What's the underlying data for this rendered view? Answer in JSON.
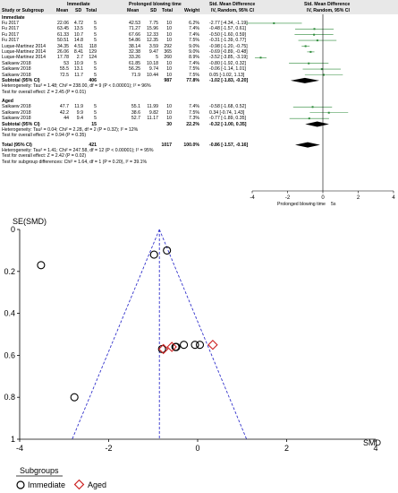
{
  "forest": {
    "headers": {
      "study": "Study or Subgroup",
      "group1": "Immediate",
      "group2": "Prolonged blowing time",
      "mean1": "Mean",
      "sd1": "SD",
      "total1": "Total",
      "mean2": "Mean",
      "sd2": "SD",
      "total2": "Total",
      "weight": "Weight",
      "smd_title": "Std. Mean Difference",
      "smd_sub": "IV, Random, 95% CI",
      "plot_title": "Std. Mean Difference",
      "plot_sub": "IV, Random, 95% CI"
    },
    "groups": [
      {
        "name": "Immediate",
        "rows": [
          {
            "study": "Fu 2017",
            "m1": "22.06",
            "s1": "4.72",
            "n1": "5",
            "m2": "42.53",
            "s2": "7.75",
            "n2": "10",
            "w": "6.2%",
            "ci": "-2.77 [-4.34, -1.19]",
            "est": -2.77,
            "lo": -4.34,
            "hi": -1.19
          },
          {
            "study": "Fu 2017",
            "m1": "63.45",
            "s1": "13.5",
            "n1": "5",
            "m2": "71.27",
            "s2": "15.96",
            "n2": "10",
            "w": "7.4%",
            "ci": "-0.48 [-1.57, 0.61]",
            "est": -0.48,
            "lo": -1.57,
            "hi": 0.61
          },
          {
            "study": "Fu 2017",
            "m1": "61.33",
            "s1": "10.7",
            "n1": "5",
            "m2": "67.66",
            "s2": "12.33",
            "n2": "10",
            "w": "7.4%",
            "ci": "-0.50 [-1.60, 0.59]",
            "est": -0.5,
            "lo": -1.6,
            "hi": 0.59
          },
          {
            "study": "Fu 2017",
            "m1": "50.51",
            "s1": "14.8",
            "n1": "5",
            "m2": "54.86",
            "s2": "12.35",
            "n2": "10",
            "w": "7.5%",
            "ci": "-0.31 [-1.39, 0.77]",
            "est": -0.31,
            "lo": -1.39,
            "hi": 0.77
          },
          {
            "study": "Luque-Martinez 2014",
            "m1": "34.35",
            "s1": "4.51",
            "n1": "118",
            "m2": "38.14",
            "s2": "3.59",
            "n2": "292",
            "w": "9.0%",
            "ci": "-0.98 [-1.20, -0.75]",
            "est": -0.98,
            "lo": -1.2,
            "hi": -0.75
          },
          {
            "study": "Luque-Martinez 2014",
            "m1": "26.06",
            "s1": "8.41",
            "n1": "129",
            "m2": "32.38",
            "s2": "9.47",
            "n2": "365",
            "w": "9.0%",
            "ci": "-0.69 [-0.89, -0.48]",
            "est": -0.69,
            "lo": -0.89,
            "hi": -0.48
          },
          {
            "study": "Luque-Martinez 2014",
            "m1": "17.78",
            "s1": "2.7",
            "n1": "124",
            "m2": "33.26",
            "s2": "5",
            "n2": "260",
            "w": "8.9%",
            "ci": "-3.52 [-3.85, -3.19]",
            "est": -3.52,
            "lo": -3.85,
            "hi": -3.19
          },
          {
            "study": "Saikaew 2018",
            "m1": "53",
            "s1": "10.9",
            "n1": "5",
            "m2": "61.85",
            "s2": "10.18",
            "n2": "10",
            "w": "7.4%",
            "ci": "-0.80 [-1.92, 0.32]",
            "est": -0.8,
            "lo": -1.92,
            "hi": 0.32
          },
          {
            "study": "Saikaew 2018",
            "m1": "55.5",
            "s1": "13.1",
            "n1": "5",
            "m2": "56.25",
            "s2": "9.74",
            "n2": "10",
            "w": "7.5%",
            "ci": "-0.06 [-1.14, 1.01]",
            "est": -0.06,
            "lo": -1.14,
            "hi": 1.01
          },
          {
            "study": "Saikaew 2018",
            "m1": "72.5",
            "s1": "11.7",
            "n1": "5",
            "m2": "71.9",
            "s2": "10.44",
            "n2": "10",
            "w": "7.5%",
            "ci": "0.05 [-1.02, 1.13]",
            "est": 0.05,
            "lo": -1.02,
            "hi": 1.13
          }
        ],
        "subtotal": {
          "label": "Subtotal (95% CI)",
          "n1": "406",
          "n2": "987",
          "w": "77.8%",
          "ci": "-1.02 [-1.83, -0.20]",
          "est": -1.02,
          "lo": -1.83,
          "hi": -0.2
        },
        "het": "Heterogeneity: Tau² = 1.48; Chi² = 238.00, df = 9 (P < 0.00001); I² = 96%",
        "overall": "Test for overall effect: Z = 2.45 (P = 0.01)"
      },
      {
        "name": "Aged",
        "rows": [
          {
            "study": "Saikaew 2018",
            "m1": "47.7",
            "s1": "11.9",
            "n1": "5",
            "m2": "55.1",
            "s2": "11.99",
            "n2": "10",
            "w": "7.4%",
            "ci": "-0.58 [-1.68, 0.52]",
            "est": -0.58,
            "lo": -1.68,
            "hi": 0.52
          },
          {
            "study": "Saikaew 2018",
            "m1": "42.2",
            "s1": "9.9",
            "n1": "5",
            "m2": "38.6",
            "s2": "9.82",
            "n2": "10",
            "w": "7.5%",
            "ci": "0.34 [-0.74, 1.43]",
            "est": 0.34,
            "lo": -0.74,
            "hi": 1.43
          },
          {
            "study": "Saikaew 2018",
            "m1": "44",
            "s1": "9.4",
            "n1": "5",
            "m2": "52.7",
            "s2": "11.17",
            "n2": "10",
            "w": "7.3%",
            "ci": "-0.77 [-1.89, 0.35]",
            "est": -0.77,
            "lo": -1.89,
            "hi": 0.35
          }
        ],
        "subtotal": {
          "label": "Subtotal (95% CI)",
          "n1": "15",
          "n2": "30",
          "w": "22.2%",
          "ci": "-0.32 [-1.00, 0.35]",
          "est": -0.32,
          "lo": -1.0,
          "hi": 0.35
        },
        "het": "Heterogeneity: Tau² = 0.04; Chi² = 2.28, df = 2 (P = 0.32); I² = 12%",
        "overall": "Test for overall effect: Z = 0.94 (P = 0.35)"
      }
    ],
    "total": {
      "label": "Total (95% CI)",
      "n1": "421",
      "n2": "1017",
      "w": "100.0%",
      "ci": "-0.86 [-1.57, -0.16]",
      "est": -0.86,
      "lo": -1.57,
      "hi": -0.16
    },
    "footer": [
      "Heterogeneity: Tau² = 1.41; Chi² = 247.58, df = 12 (P < 0.00001); I² = 95%",
      "Test for overall effect: Z = 2.42 (P = 0.02)",
      "Test for subgroup differences: Chi² = 1.64, df = 1 (P = 0.20), I² = 39.1%"
    ],
    "axis_ticks": [
      "-4",
      "-2",
      "0",
      "2",
      "4"
    ],
    "axis_label": "Prolonged blowing time",
    "axis_note": "5s"
  },
  "funnel": {
    "y_label": "SE(SMD)",
    "x_label": "SMD",
    "x_ticks": [
      "-4",
      "-2",
      "0",
      "2",
      "4"
    ],
    "y_ticks": [
      "0",
      "0.2",
      "0.4",
      "0.6",
      "0.8",
      "1"
    ],
    "legend_title": "Subgroups",
    "legend_items": [
      "Immediate",
      "Aged"
    ],
    "colors": {
      "immediate": "#000000",
      "aged": "#cc2222",
      "guide": "#3333cc"
    }
  },
  "chart_data": [
    {
      "type": "scatter",
      "title": "",
      "xlabel": "SMD",
      "ylabel": "SE(SMD)",
      "xlim": [
        -4,
        4
      ],
      "ylim": [
        1,
        0
      ],
      "pooled_estimate": -0.86,
      "series": [
        {
          "name": "Immediate",
          "x": [
            -2.77,
            -0.48,
            -0.5,
            -0.31,
            -0.98,
            -0.69,
            -3.52,
            -0.8,
            -0.06,
            0.05
          ],
          "y": [
            0.8,
            0.56,
            0.56,
            0.55,
            0.12,
            0.1,
            0.17,
            0.57,
            0.55,
            0.55
          ]
        },
        {
          "name": "Aged",
          "x": [
            -0.58,
            0.34,
            -0.77
          ],
          "y": [
            0.56,
            0.55,
            0.57
          ]
        }
      ]
    }
  ]
}
